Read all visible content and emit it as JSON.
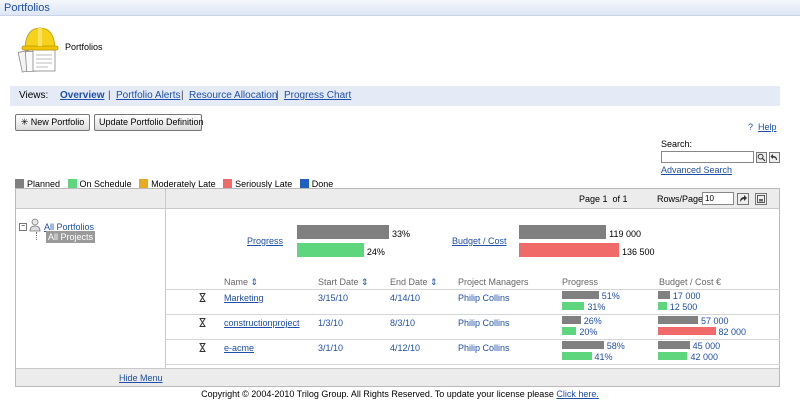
{
  "window": {
    "title": "Portfolios"
  },
  "header": {
    "title": "Portfolios",
    "logo_icon": "hardhat-documents-icon"
  },
  "views": {
    "label": "Views:",
    "items": [
      {
        "label": "Overview",
        "active": true
      },
      {
        "label": "Portfolio Alerts",
        "active": false
      },
      {
        "label": "Resource Allocation",
        "active": false
      },
      {
        "label": "Progress Chart",
        "active": false
      }
    ],
    "separator": "|"
  },
  "toolbar": {
    "new_portfolio_label": "New Portfolio",
    "new_portfolio_icon": "asterisk-icon",
    "update_definition_label": "Update Portfolio Definition",
    "help_label": "Help",
    "help_icon": "question-icon"
  },
  "search": {
    "label": "Search:",
    "value": "",
    "advanced_label": "Advanced Search",
    "go_icon": "magnifier-icon",
    "reset_icon": "back-arrow-icon"
  },
  "legend": {
    "items": [
      {
        "label": "Planned",
        "color": "#808080"
      },
      {
        "label": "On Schedule",
        "color": "#5ed67e"
      },
      {
        "label": "Moderately Late",
        "color": "#e8a91e"
      },
      {
        "label": "Seriously Late",
        "color": "#f06a6a"
      },
      {
        "label": "Done",
        "color": "#1f5fc0"
      }
    ]
  },
  "pager": {
    "page_label": "Page 1  of 1",
    "rows_label": "Rows/Page:",
    "rows_value": "10",
    "apply_icon": "arrow-go-icon",
    "export_icon": "export-icon"
  },
  "tree": {
    "root_label": "All Portfolios",
    "child_label": "All Projects",
    "toggle": "−",
    "hide_menu_label": "Hide Menu",
    "root_icon": "portfolio-person-icon"
  },
  "summary": {
    "progress": {
      "label": "Progress",
      "planned_pct": 33,
      "actual_pct": 24,
      "planned_text": "33%",
      "actual_text": "24%",
      "actual_status": "On Schedule"
    },
    "budget": {
      "label": "Budget / Cost",
      "planned_value": 119000,
      "actual_value": 136500,
      "planned_text": "119 000",
      "actual_text": "136 500",
      "actual_status": "Seriously Late"
    }
  },
  "table": {
    "columns": {
      "name": "Name",
      "start_date": "Start Date",
      "end_date": "End Date",
      "managers": "Project Managers",
      "progress": "Progress",
      "budget": "Budget / Cost €"
    },
    "sort_icon": "sort-updown-icon",
    "status_icon": "hourglass-icon",
    "rows": [
      {
        "name": "Marketing",
        "start": "3/15/10",
        "end": "4/14/10",
        "manager": "Philip Collins",
        "progress_planned": 51,
        "progress_actual": 31,
        "progress_planned_text": "51%",
        "progress_actual_text": "31%",
        "progress_status": "On Schedule",
        "budget_planned": 17000,
        "budget_actual": 12500,
        "budget_planned_text": "17 000",
        "budget_actual_text": "12 500",
        "budget_status": "On Schedule"
      },
      {
        "name": "constructionproject",
        "start": "1/3/10",
        "end": "8/3/10",
        "manager": "Philip Collins",
        "progress_planned": 26,
        "progress_actual": 20,
        "progress_planned_text": "26%",
        "progress_actual_text": "20%",
        "progress_status": "On Schedule",
        "budget_planned": 57000,
        "budget_actual": 82000,
        "budget_planned_text": "57 000",
        "budget_actual_text": "82 000",
        "budget_status": "Seriously Late"
      },
      {
        "name": "e-acme",
        "start": "3/1/10",
        "end": "4/12/10",
        "manager": "Philip Collins",
        "progress_planned": 58,
        "progress_actual": 41,
        "progress_planned_text": "58%",
        "progress_actual_text": "41%",
        "progress_status": "On Schedule",
        "budget_planned": 45000,
        "budget_actual": 42000,
        "budget_planned_text": "45 000",
        "budget_actual_text": "42 000",
        "budget_status": "On Schedule"
      }
    ]
  },
  "footer": {
    "text": "Copyright © 2004-2010 Trilog Group. All Rights Reserved. To update your license please ",
    "link_label": "Click here."
  }
}
